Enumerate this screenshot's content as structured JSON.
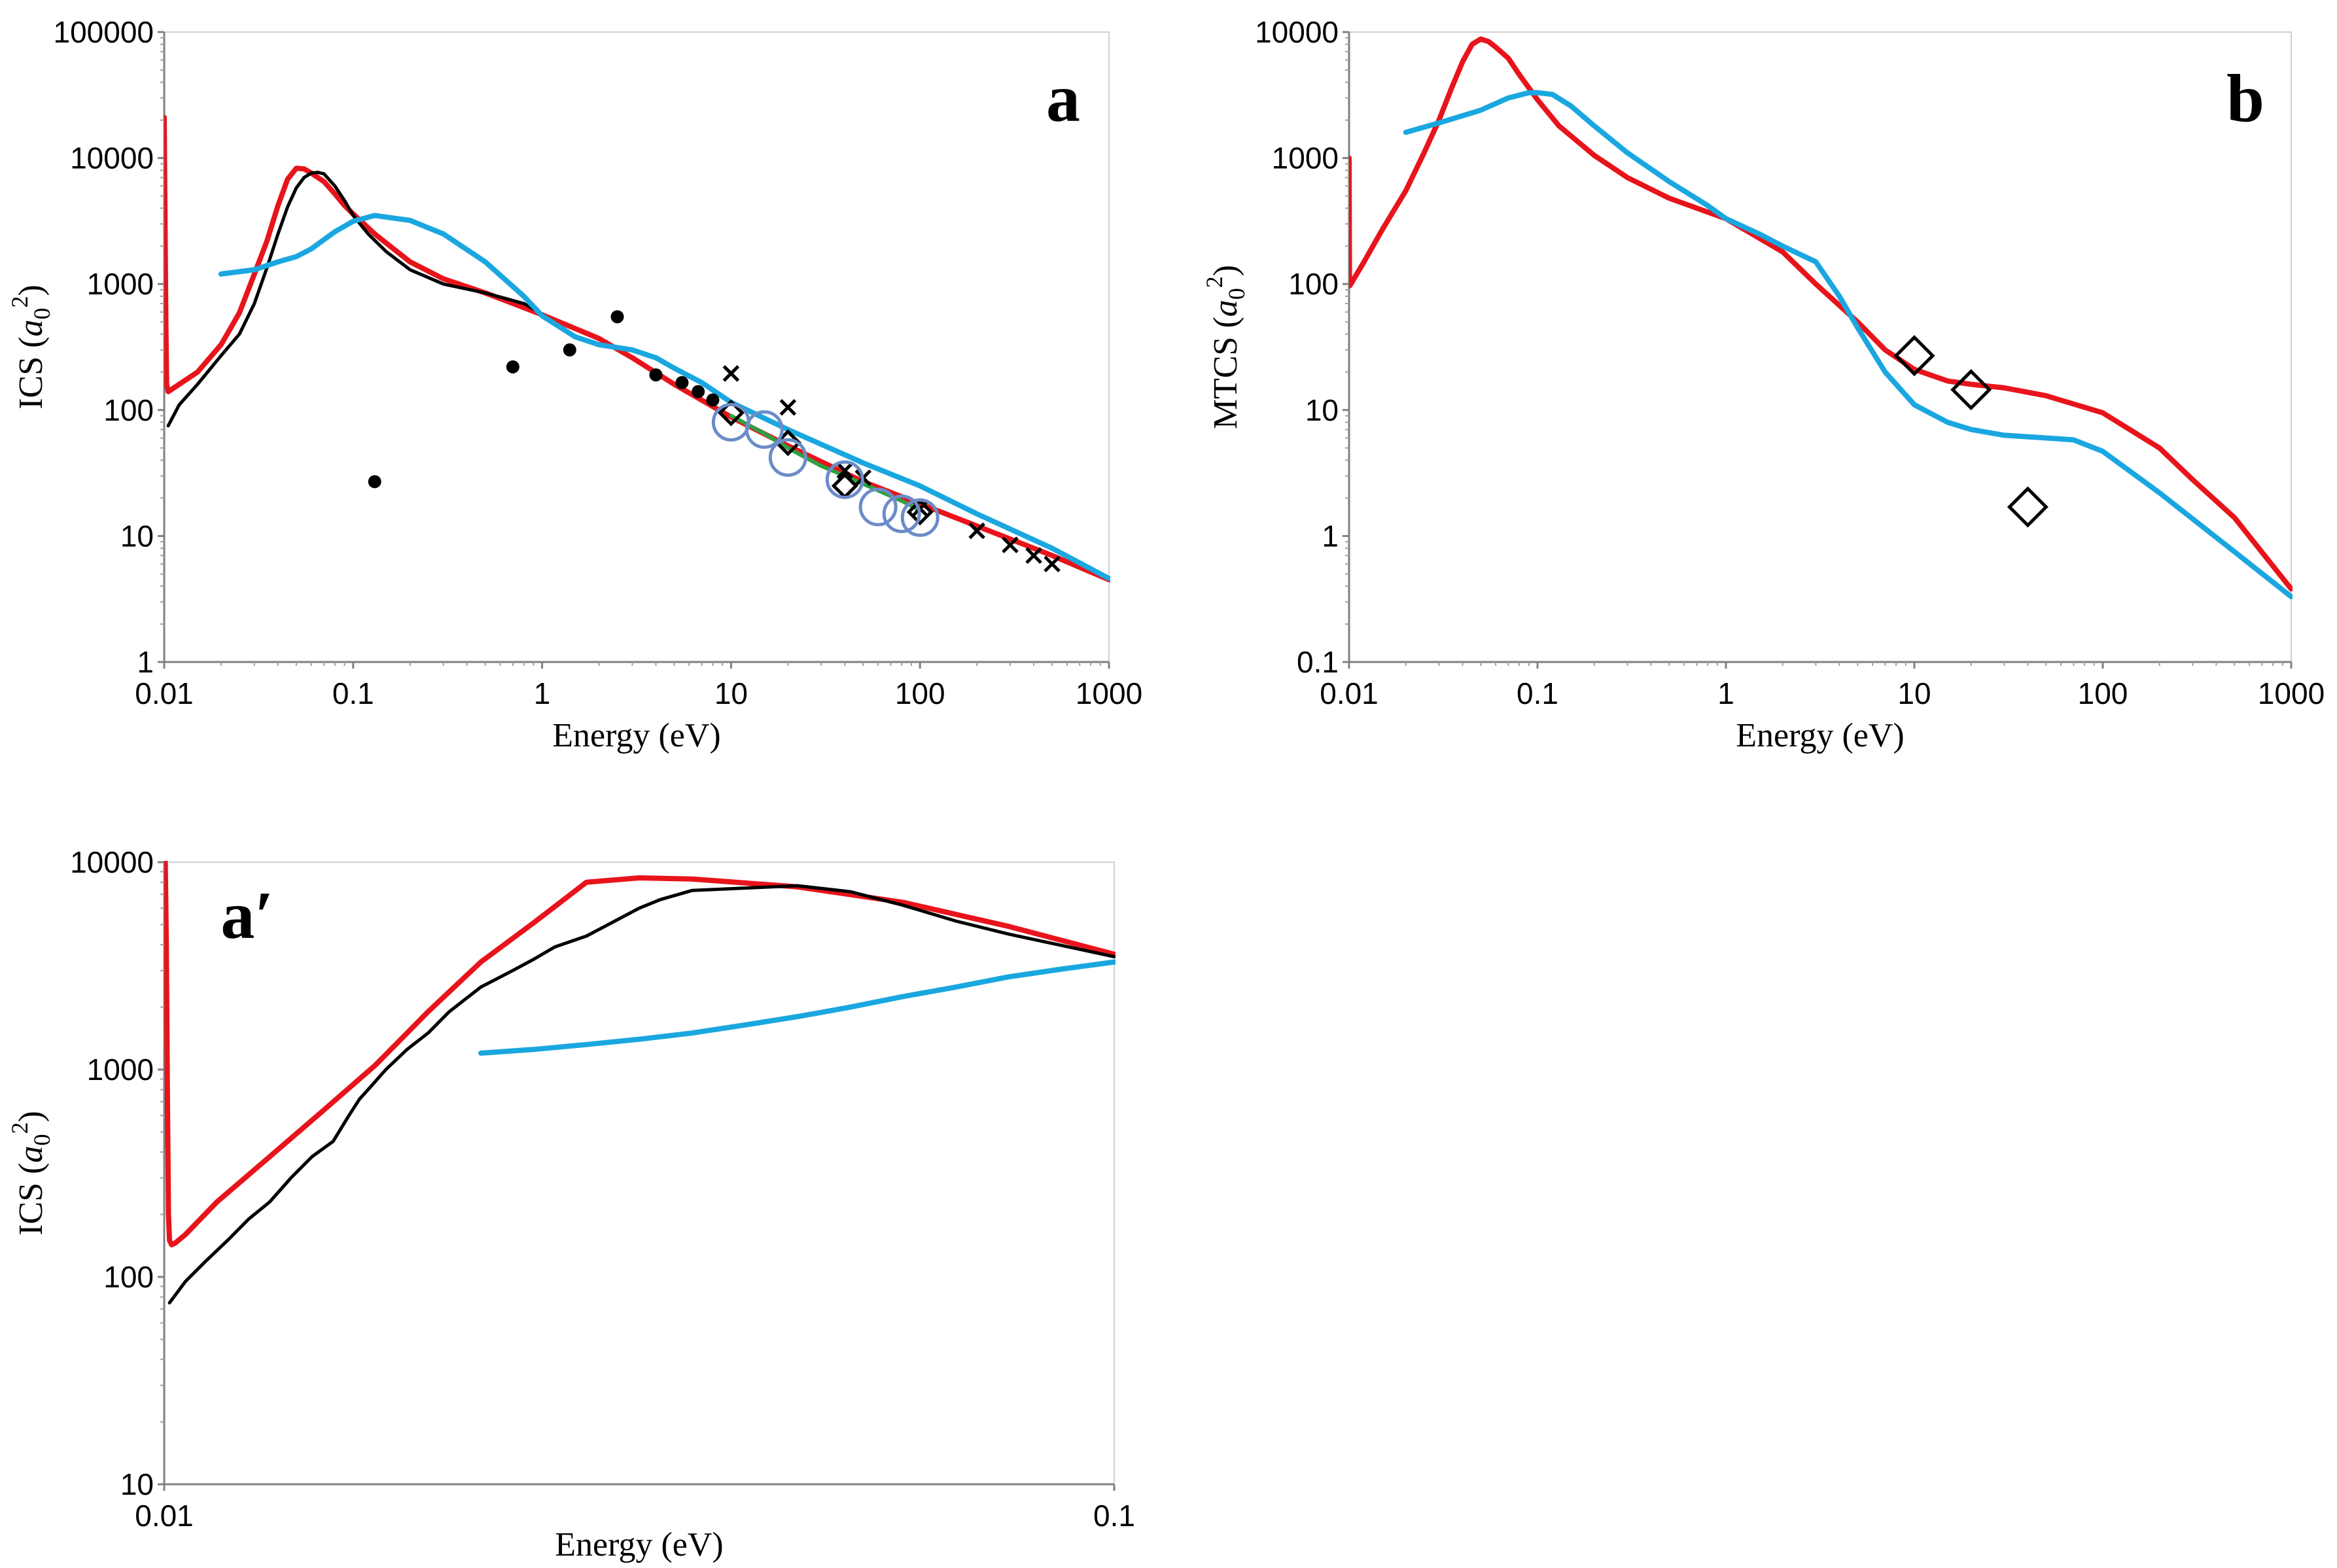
{
  "figure_title": "",
  "chart_data": [
    {
      "type": "line",
      "panel_label": "a",
      "xlabel": "Energy (eV)",
      "ylabel_main": "ICS (",
      "ylabel_var": "a",
      "ylabel_sub": "0",
      "ylabel_sup": "2",
      "ylabel_close": ")",
      "xscale": "log",
      "yscale": "log",
      "xlim": [
        0.01,
        1000
      ],
      "ylim": [
        1,
        100000
      ],
      "xticks": [
        0.01,
        0.1,
        1,
        10,
        100,
        1000
      ],
      "xtick_labels": [
        "0.01",
        "0.1",
        "1",
        "10",
        "100",
        "1000"
      ],
      "yticks": [
        1,
        10,
        100,
        1000,
        10000,
        100000
      ],
      "ytick_labels": [
        "1",
        "10",
        "100",
        "1000",
        "10000",
        "100000"
      ],
      "series": [
        {
          "name": "red",
          "kind": "line",
          "color": "#e8141b",
          "x": [
            0.01,
            0.0101,
            0.0102,
            0.0103,
            0.0105,
            0.012,
            0.015,
            0.02,
            0.025,
            0.03,
            0.035,
            0.04,
            0.045,
            0.05,
            0.055,
            0.06,
            0.07,
            0.08,
            0.09,
            0.1,
            0.13,
            0.2,
            0.3,
            0.5,
            0.8,
            1,
            2,
            3,
            5,
            10,
            20,
            50,
            100,
            200,
            500,
            1000
          ],
          "y": [
            21000,
            3000,
            500,
            160,
            140,
            160,
            200,
            330,
            590,
            1200,
            2200,
            4200,
            6800,
            8300,
            8200,
            7600,
            6500,
            5200,
            4200,
            3600,
            2500,
            1500,
            1100,
            850,
            650,
            570,
            370,
            260,
            160,
            88,
            52,
            27,
            18,
            12,
            7,
            4.5
          ]
        },
        {
          "name": "black",
          "kind": "line",
          "color": "#000000",
          "x": [
            0.0105,
            0.012,
            0.015,
            0.02,
            0.025,
            0.03,
            0.035,
            0.04,
            0.045,
            0.05,
            0.055,
            0.06,
            0.065,
            0.07,
            0.08,
            0.09,
            0.1,
            0.12,
            0.15,
            0.2,
            0.3,
            0.5,
            0.8,
            1
          ],
          "y": [
            75,
            110,
            160,
            270,
            400,
            700,
            1350,
            2500,
            4100,
            5800,
            7000,
            7600,
            7700,
            7500,
            6000,
            4600,
            3500,
            2500,
            1800,
            1300,
            1000,
            850,
            700,
            580
          ]
        },
        {
          "name": "cyan",
          "kind": "line",
          "color": "#1aa7e0",
          "x": [
            0.02,
            0.03,
            0.04,
            0.05,
            0.06,
            0.08,
            0.1,
            0.13,
            0.2,
            0.3,
            0.5,
            0.8,
            1,
            1.5,
            2,
            3,
            4,
            5,
            7,
            10,
            20,
            50,
            100,
            200,
            500,
            1000
          ],
          "y": [
            1200,
            1300,
            1500,
            1650,
            1900,
            2600,
            3150,
            3500,
            3200,
            2500,
            1500,
            800,
            560,
            380,
            330,
            300,
            260,
            215,
            165,
            115,
            70,
            38,
            25,
            15,
            8,
            4.6
          ]
        },
        {
          "name": "green",
          "kind": "line",
          "color": "#2ea043",
          "x": [
            10,
            15,
            20,
            30,
            40,
            60,
            80,
            100
          ],
          "y": [
            90,
            65,
            50,
            36,
            30,
            23,
            19,
            16
          ]
        },
        {
          "name": "dots",
          "kind": "marker",
          "marker": "dot",
          "color": "#000000",
          "x": [
            0.13,
            0.7,
            1.4,
            2.5,
            4,
            5.5,
            6.7,
            8
          ],
          "y": [
            27,
            220,
            300,
            550,
            190,
            165,
            140,
            120
          ]
        },
        {
          "name": "crosses",
          "kind": "marker",
          "marker": "cross",
          "color": "#000000",
          "x": [
            10,
            20,
            40,
            50,
            100,
            200,
            300,
            400,
            500
          ],
          "y": [
            195,
            105,
            33,
            29,
            16.5,
            11,
            8.5,
            7,
            6
          ]
        },
        {
          "name": "diamonds",
          "kind": "marker",
          "marker": "diamond",
          "color": "#000000",
          "x": [
            10,
            20,
            40,
            100
          ],
          "y": [
            95,
            55,
            25,
            15.5
          ]
        },
        {
          "name": "circles",
          "kind": "marker",
          "marker": "circle",
          "color": "#6c8cc8",
          "x": [
            10,
            15,
            20,
            40,
            60,
            80,
            100
          ],
          "y": [
            80,
            70,
            42,
            28,
            17,
            15,
            14
          ]
        }
      ]
    },
    {
      "type": "line",
      "panel_label": "b",
      "xlabel": "Energy (eV)",
      "ylabel_main": "MTCS (",
      "ylabel_var": "a",
      "ylabel_sub": "0",
      "ylabel_sup": "2",
      "ylabel_close": ")",
      "xscale": "log",
      "yscale": "log",
      "xlim": [
        0.01,
        1000
      ],
      "ylim": [
        0.1,
        10000
      ],
      "xticks": [
        0.01,
        0.1,
        1,
        10,
        100,
        1000
      ],
      "xtick_labels": [
        "0.01",
        "0.1",
        "1",
        "10",
        "100",
        "1000"
      ],
      "yticks": [
        0.1,
        1,
        10,
        100,
        1000,
        10000
      ],
      "ytick_labels": [
        "0.1",
        "1",
        "10",
        "100",
        "1000",
        "10000"
      ],
      "series": [
        {
          "name": "red",
          "kind": "line",
          "color": "#e8141b",
          "x": [
            0.01,
            0.01005,
            0.0101,
            0.012,
            0.015,
            0.02,
            0.025,
            0.03,
            0.035,
            0.04,
            0.045,
            0.05,
            0.055,
            0.06,
            0.07,
            0.08,
            0.1,
            0.13,
            0.2,
            0.3,
            0.5,
            1,
            2,
            3,
            5,
            7,
            10,
            15,
            20,
            30,
            50,
            100,
            200,
            300,
            500,
            1000
          ],
          "y": [
            1000,
            100,
            97,
            150,
            270,
            550,
            1100,
            2000,
            3600,
            5800,
            8000,
            8800,
            8400,
            7600,
            6200,
            4600,
            2900,
            1800,
            1050,
            700,
            480,
            330,
            180,
            100,
            50,
            30,
            21,
            17,
            16,
            15,
            13,
            9.5,
            5,
            2.8,
            1.4,
            0.38
          ]
        },
        {
          "name": "cyan",
          "kind": "line",
          "color": "#1aa7e0",
          "x": [
            0.02,
            0.03,
            0.05,
            0.07,
            0.09,
            0.1,
            0.12,
            0.15,
            0.2,
            0.3,
            0.5,
            0.8,
            1,
            1.5,
            2,
            3,
            4,
            5,
            7,
            10,
            15,
            20,
            30,
            50,
            70,
            100,
            200,
            500,
            1000
          ],
          "y": [
            1600,
            1900,
            2400,
            3000,
            3300,
            3300,
            3200,
            2600,
            1800,
            1100,
            650,
            420,
            330,
            250,
            200,
            150,
            80,
            45,
            20,
            11,
            8,
            7,
            6.3,
            6,
            5.8,
            4.7,
            2.2,
            0.75,
            0.33
          ]
        },
        {
          "name": "diamonds",
          "kind": "marker",
          "marker": "diamond",
          "color": "#000000",
          "x": [
            10,
            20,
            40
          ],
          "y": [
            27,
            14.5,
            1.7
          ]
        }
      ]
    },
    {
      "type": "line",
      "panel_label": "a′",
      "xlabel": "Energy (eV)",
      "ylabel_main": "ICS (",
      "ylabel_var": "a",
      "ylabel_sub": "0",
      "ylabel_sup": "2",
      "ylabel_close": ")",
      "xscale": "linear",
      "yscale": "log",
      "xlim": [
        0.01,
        0.1
      ],
      "ylim": [
        10,
        10000
      ],
      "xticks": [
        0.01,
        0.1
      ],
      "xtick_labels": [
        "0.01",
        "0.1"
      ],
      "yticks": [
        10,
        100,
        1000,
        10000
      ],
      "ytick_labels": [
        "10",
        "100",
        "1000",
        "10000"
      ],
      "series": [
        {
          "name": "red",
          "kind": "line",
          "color": "#e8141b",
          "x": [
            0.0101,
            0.0102,
            0.0103,
            0.0104,
            0.0105,
            0.0107,
            0.011,
            0.012,
            0.015,
            0.02,
            0.025,
            0.03,
            0.035,
            0.04,
            0.045,
            0.05,
            0.055,
            0.06,
            0.07,
            0.08,
            0.09,
            0.1
          ],
          "y": [
            10000,
            4000,
            800,
            200,
            150,
            143,
            145,
            160,
            230,
            380,
            630,
            1050,
            1900,
            3300,
            5100,
            8000,
            8400,
            8300,
            7600,
            6400,
            4900,
            3600
          ]
        },
        {
          "name": "black",
          "kind": "line",
          "color": "#000000",
          "x": [
            0.0105,
            0.012,
            0.014,
            0.016,
            0.018,
            0.02,
            0.022,
            0.024,
            0.026,
            0.0275,
            0.0285,
            0.0295,
            0.031,
            0.033,
            0.035,
            0.037,
            0.04,
            0.043,
            0.045,
            0.047,
            0.05,
            0.053,
            0.055,
            0.057,
            0.06,
            0.065,
            0.07,
            0.075,
            0.08,
            0.085,
            0.09,
            0.1
          ],
          "y": [
            75,
            95,
            120,
            150,
            190,
            230,
            300,
            380,
            450,
            600,
            720,
            820,
            1000,
            1250,
            1500,
            1900,
            2500,
            3000,
            3400,
            3900,
            4400,
            5300,
            6000,
            6600,
            7300,
            7500,
            7700,
            7200,
            6200,
            5200,
            4500,
            3500
          ]
        },
        {
          "name": "cyan",
          "kind": "line",
          "color": "#1aa7e0",
          "x": [
            0.04,
            0.045,
            0.05,
            0.055,
            0.06,
            0.065,
            0.07,
            0.075,
            0.08,
            0.085,
            0.09,
            0.095,
            0.1
          ],
          "y": [
            1200,
            1250,
            1320,
            1400,
            1500,
            1640,
            1800,
            2000,
            2250,
            2500,
            2800,
            3050,
            3300
          ]
        }
      ]
    }
  ]
}
